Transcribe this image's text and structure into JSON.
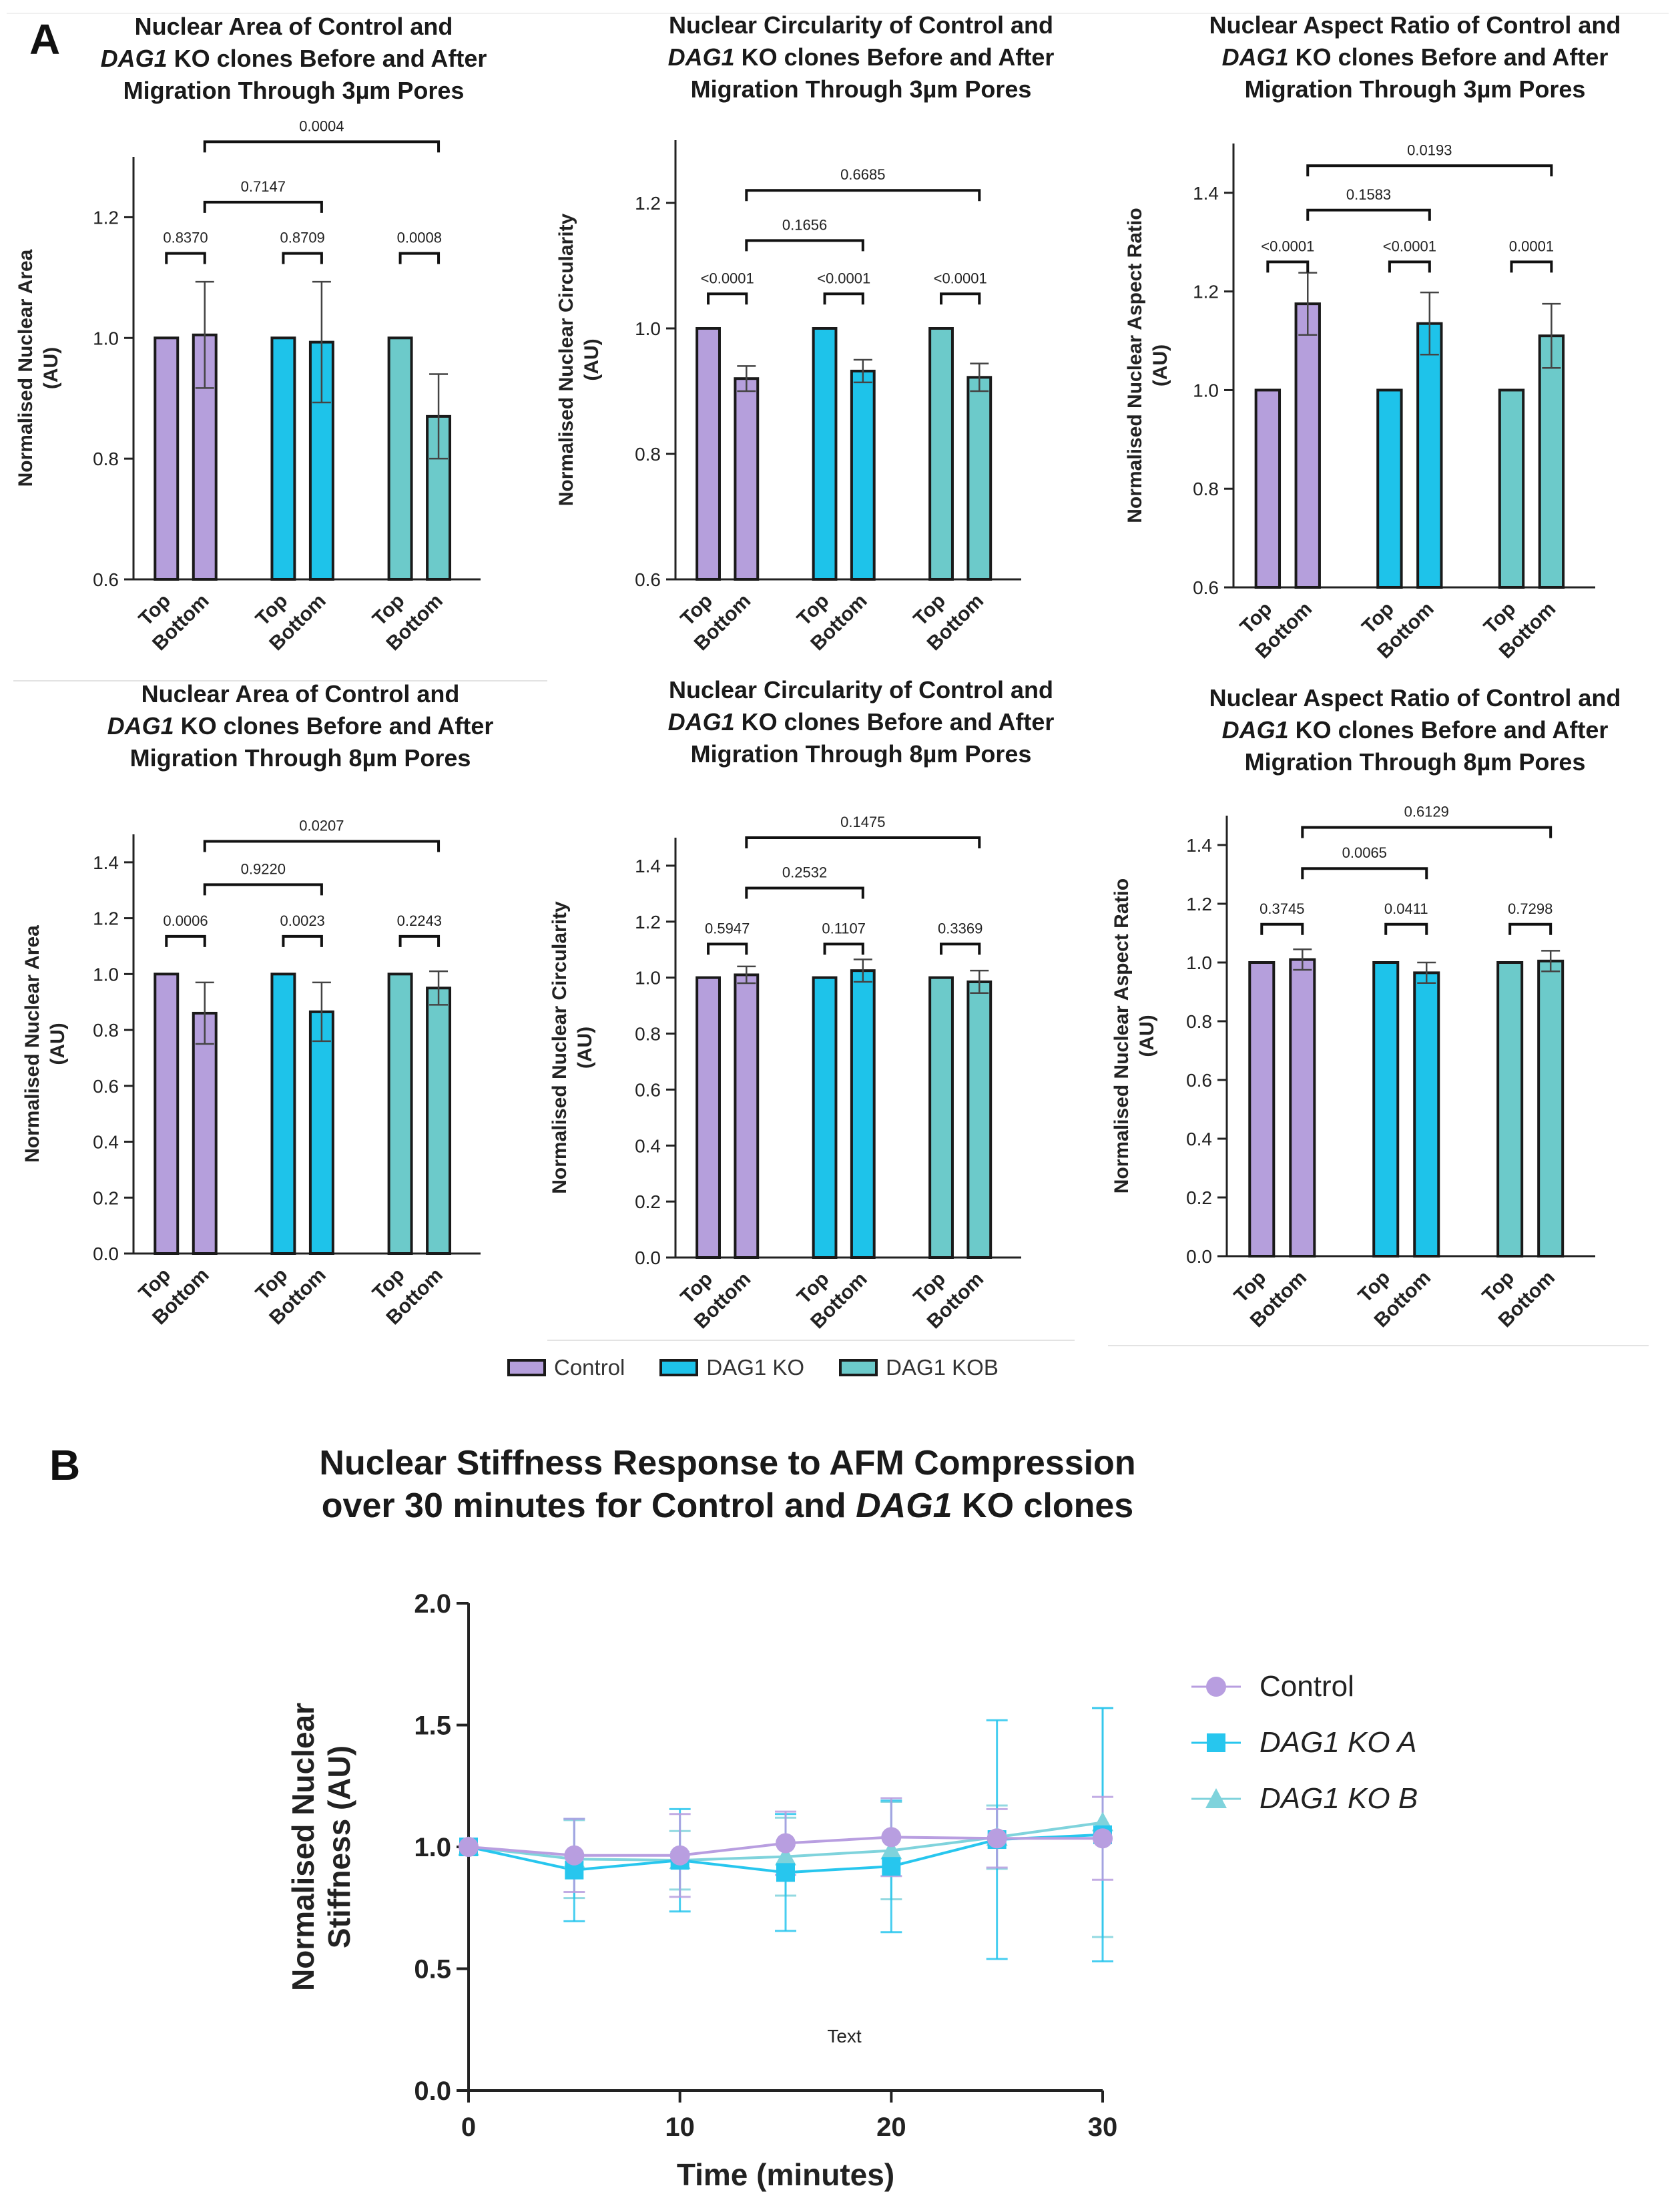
{
  "panel_labels": {
    "a": "A",
    "b": "B"
  },
  "colors": {
    "control": "#b59fdc",
    "ko_a": "#1ec3ea",
    "ko_b": "#6ccaca",
    "outline": "#1a1a1a",
    "errbar": "#555555",
    "b_control": "#b89ee0",
    "b_ko_a": "#27c6ee",
    "b_ko_b": "#7fd3dc"
  },
  "legend_a": [
    {
      "label": "Control",
      "color_key": "control"
    },
    {
      "label": "DAG1 KO",
      "color_key": "ko_a"
    },
    {
      "label": "DAG1 KOB",
      "color_key": "ko_b"
    }
  ],
  "chart_data": [
    {
      "id": "area3",
      "type": "bar",
      "title": {
        "l1": "Nuclear Area of Control and",
        "l2_italic": "DAG1",
        "l2_rest": " KO clones Before and After",
        "l3": "Migration Through 3µm Pores"
      },
      "ylabel": "Normalised Nuclear Area",
      "ylabel2": "(AU)",
      "ylim": [
        0.6,
        1.3
      ],
      "yticks": [
        "0.6",
        "0.8",
        "1.0",
        "1.2"
      ],
      "categories": [
        "Top",
        "Bottom",
        "Top",
        "Bottom",
        "Top",
        "Bottom"
      ],
      "series": [
        {
          "name": "Control",
          "top": 1.0,
          "bottom": 1.005,
          "err": 0.088
        },
        {
          "name": "DAG1 KO",
          "top": 1.0,
          "bottom": 0.993,
          "err": 0.1
        },
        {
          "name": "DAG1 KOB",
          "top": 1.0,
          "bottom": 0.87,
          "err": 0.07
        }
      ],
      "pvals": {
        "within": [
          "0.8370",
          "0.8709",
          "0.0008"
        ],
        "ctrl_vs_ko": "0.7147",
        "ctrl_vs_kob": "0.0004"
      },
      "brk": {
        "within": 1.14,
        "ko": 1.225,
        "kob": 1.325
      }
    },
    {
      "id": "circ3",
      "type": "bar",
      "title": {
        "l1": "Nuclear Circularity of Control and",
        "l2_italic": "DAG1",
        "l2_rest": " KO clones Before and After",
        "l3": "Migration Through 3µm Pores"
      },
      "ylabel": "Normalised Nuclear Circularity",
      "ylabel2": "(AU)",
      "ylim": [
        0.6,
        1.3
      ],
      "yticks": [
        "0.6",
        "0.8",
        "1.0",
        "1.2"
      ],
      "categories": [
        "Top",
        "Bottom",
        "Top",
        "Bottom",
        "Top",
        "Bottom"
      ],
      "series": [
        {
          "name": "Control",
          "top": 1.0,
          "bottom": 0.92,
          "err": 0.02
        },
        {
          "name": "DAG1 KO",
          "top": 1.0,
          "bottom": 0.932,
          "err": 0.018
        },
        {
          "name": "DAG1 KOB",
          "top": 1.0,
          "bottom": 0.922,
          "err": 0.022
        }
      ],
      "pvals": {
        "within": [
          "<0.0001",
          "<0.0001",
          "<0.0001"
        ],
        "ctrl_vs_ko": "0.1656",
        "ctrl_vs_kob": "0.6685"
      },
      "brk": {
        "within": 1.055,
        "ko": 1.14,
        "kob": 1.22
      }
    },
    {
      "id": "ar3",
      "type": "bar",
      "title": {
        "l1": "Nuclear Aspect Ratio of Control and",
        "l2_italic": "DAG1",
        "l2_rest": " KO clones Before and After",
        "l3": "Migration Through 3µm Pores"
      },
      "ylabel": "Normalised Nuclear Aspect Ratio",
      "ylabel2": "(AU)",
      "ylim": [
        0.6,
        1.5
      ],
      "yticks": [
        "0.6",
        "0.8",
        "1.0",
        "1.2",
        "1.4"
      ],
      "categories": [
        "Top",
        "Bottom",
        "Top",
        "Bottom",
        "Top",
        "Bottom"
      ],
      "series": [
        {
          "name": "Control",
          "top": 1.0,
          "bottom": 1.175,
          "err": 0.063
        },
        {
          "name": "DAG1 KO",
          "top": 1.0,
          "bottom": 1.135,
          "err": 0.063
        },
        {
          "name": "DAG1 KOB",
          "top": 1.0,
          "bottom": 1.11,
          "err": 0.065
        }
      ],
      "pvals": {
        "within": [
          "<0.0001",
          "<0.0001",
          "0.0001"
        ],
        "ctrl_vs_ko": "0.1583",
        "ctrl_vs_kob": "0.0193"
      },
      "brk": {
        "within": 1.26,
        "ko": 1.365,
        "kob": 1.455
      }
    },
    {
      "id": "area8",
      "type": "bar",
      "title": {
        "l1": "Nuclear Area of Control and",
        "l2_italic": "DAG1",
        "l2_rest": " KO clones Before and After",
        "l3": "Migration Through 8µm Pores"
      },
      "ylabel": "Normalised Nuclear Area",
      "ylabel2": "(AU)",
      "ylim": [
        0.0,
        1.5
      ],
      "yticks": [
        "0.0",
        "0.2",
        "0.4",
        "0.6",
        "0.8",
        "1.0",
        "1.2",
        "1.4"
      ],
      "categories": [
        "Top",
        "Bottom",
        "Top",
        "Bottom",
        "Top",
        "Bottom"
      ],
      "series": [
        {
          "name": "Control",
          "top": 1.0,
          "bottom": 0.86,
          "err": 0.11
        },
        {
          "name": "DAG1 KO",
          "top": 1.0,
          "bottom": 0.865,
          "err": 0.105
        },
        {
          "name": "DAG1 KOB",
          "top": 1.0,
          "bottom": 0.95,
          "err": 0.06
        }
      ],
      "pvals": {
        "within": [
          "0.0006",
          "0.0023",
          "0.2243"
        ],
        "ctrl_vs_ko": "0.9220",
        "ctrl_vs_kob": "0.0207"
      },
      "brk": {
        "within": 1.135,
        "ko": 1.32,
        "kob": 1.475
      }
    },
    {
      "id": "circ8",
      "type": "bar",
      "title": {
        "l1": "Nuclear Circularity of Control and",
        "l2_italic": "DAG1",
        "l2_rest": " KO clones Before and After",
        "l3": "Migration Through 8µm Pores"
      },
      "ylabel": "Normalised Nuclear Circularity",
      "ylabel2": "(AU)",
      "ylim": [
        0.0,
        1.5
      ],
      "yticks": [
        "0.0",
        "0.2",
        "0.4",
        "0.6",
        "0.8",
        "1.0",
        "1.2",
        "1.4"
      ],
      "categories": [
        "Top",
        "Bottom",
        "Top",
        "Bottom",
        "Top",
        "Bottom"
      ],
      "series": [
        {
          "name": "Control",
          "top": 1.0,
          "bottom": 1.01,
          "err": 0.03
        },
        {
          "name": "DAG1 KO",
          "top": 1.0,
          "bottom": 1.025,
          "err": 0.04
        },
        {
          "name": "DAG1 KOB",
          "top": 1.0,
          "bottom": 0.985,
          "err": 0.04
        }
      ],
      "pvals": {
        "within": [
          "0.5947",
          "0.1107",
          "0.3369"
        ],
        "ctrl_vs_ko": "0.2532",
        "ctrl_vs_kob": "0.1475"
      },
      "brk": {
        "within": 1.12,
        "ko": 1.32,
        "kob": 1.5
      }
    },
    {
      "id": "ar8",
      "type": "bar",
      "title": {
        "l1": "Nuclear Aspect Ratio of Control and",
        "l2_italic": "DAG1",
        "l2_rest": " KO clones Before and After",
        "l3": "Migration Through 8µm Pores"
      },
      "ylabel": "Normalised Nuclear Aspect Ratio",
      "ylabel2": "(AU)",
      "ylim": [
        0.0,
        1.5
      ],
      "yticks": [
        "0.0",
        "0.2",
        "0.4",
        "0.6",
        "0.8",
        "1.0",
        "1.2",
        "1.4"
      ],
      "categories": [
        "Top",
        "Bottom",
        "Top",
        "Bottom",
        "Top",
        "Bottom"
      ],
      "series": [
        {
          "name": "Control",
          "top": 1.0,
          "bottom": 1.01,
          "err": 0.035
        },
        {
          "name": "DAG1 KO",
          "top": 1.0,
          "bottom": 0.965,
          "err": 0.035
        },
        {
          "name": "DAG1 KOB",
          "top": 1.0,
          "bottom": 1.005,
          "err": 0.035
        }
      ],
      "pvals": {
        "within": [
          "0.3745",
          "0.0411",
          "0.7298"
        ],
        "ctrl_vs_ko": "0.0065",
        "ctrl_vs_kob": "0.6129"
      },
      "brk": {
        "within": 1.13,
        "ko": 1.32,
        "kob": 1.46
      }
    },
    {
      "id": "stiffness",
      "type": "line",
      "title": {
        "l1": "Nuclear Stiffness Response to AFM Compression",
        "l2_pre": "over 30 minutes for Control and ",
        "l2_italic": "DAG1",
        "l2_rest": " KO clones"
      },
      "xlabel": "Time (minutes)",
      "ylabel": "Normalised Nuclear",
      "ylabel2": "Stiffness (AU)",
      "annotation": "Text",
      "x": [
        0,
        5,
        10,
        15,
        20,
        25,
        30
      ],
      "xticks": [
        "0",
        "10",
        "20",
        "30"
      ],
      "xtick_values": [
        0,
        10,
        20,
        30
      ],
      "yticks": [
        "0.0",
        "0.5",
        "1.0",
        "1.5",
        "2.0"
      ],
      "ytick_values": [
        0,
        0.5,
        1.0,
        1.5,
        2.0
      ],
      "xlim": [
        0,
        30
      ],
      "ylim": [
        0,
        2.0
      ],
      "series": [
        {
          "name": "Control",
          "marker": "circle",
          "color_key": "b_control",
          "values": [
            1.0,
            0.965,
            0.965,
            1.015,
            1.04,
            1.035,
            1.035
          ],
          "err": [
            0.0,
            0.15,
            0.17,
            0.13,
            0.16,
            0.12,
            0.17
          ]
        },
        {
          "name": "DAG1 KO A",
          "marker": "square",
          "color_key": "b_ko_a",
          "values": [
            1.0,
            0.905,
            0.945,
            0.895,
            0.92,
            1.03,
            1.05
          ],
          "err": [
            0.0,
            0.21,
            0.21,
            0.24,
            0.27,
            0.49,
            0.52
          ]
        },
        {
          "name": "DAG1 KO B",
          "marker": "triangle",
          "color_key": "b_ko_b",
          "values": [
            1.0,
            0.95,
            0.945,
            0.96,
            0.985,
            1.04,
            1.1
          ],
          "err": [
            0.0,
            0.16,
            0.12,
            0.16,
            0.2,
            0.13,
            0.47
          ]
        }
      ]
    }
  ]
}
